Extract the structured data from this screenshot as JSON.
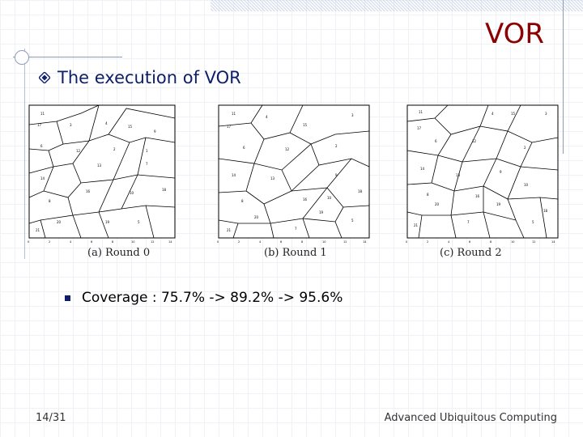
{
  "slide": {
    "title": "VOR",
    "subtitle": "The execution of VOR",
    "bullet": "Coverage : 75.7% -> 89.2% -> 95.6%",
    "page": "14/31",
    "footer": "Advanced Ubiquitous Computing"
  },
  "figures": [
    {
      "caption": "(a) Round 0"
    },
    {
      "caption": "(b) Round 1"
    },
    {
      "caption": "(c) Round 2"
    }
  ],
  "colors": {
    "title": "#8b0000",
    "text": "#0d1f6a",
    "accent": "#8f9bb8"
  },
  "icons": {
    "subtitle": "diamond-bullet-icon",
    "bullet": "square-bullet-icon"
  }
}
